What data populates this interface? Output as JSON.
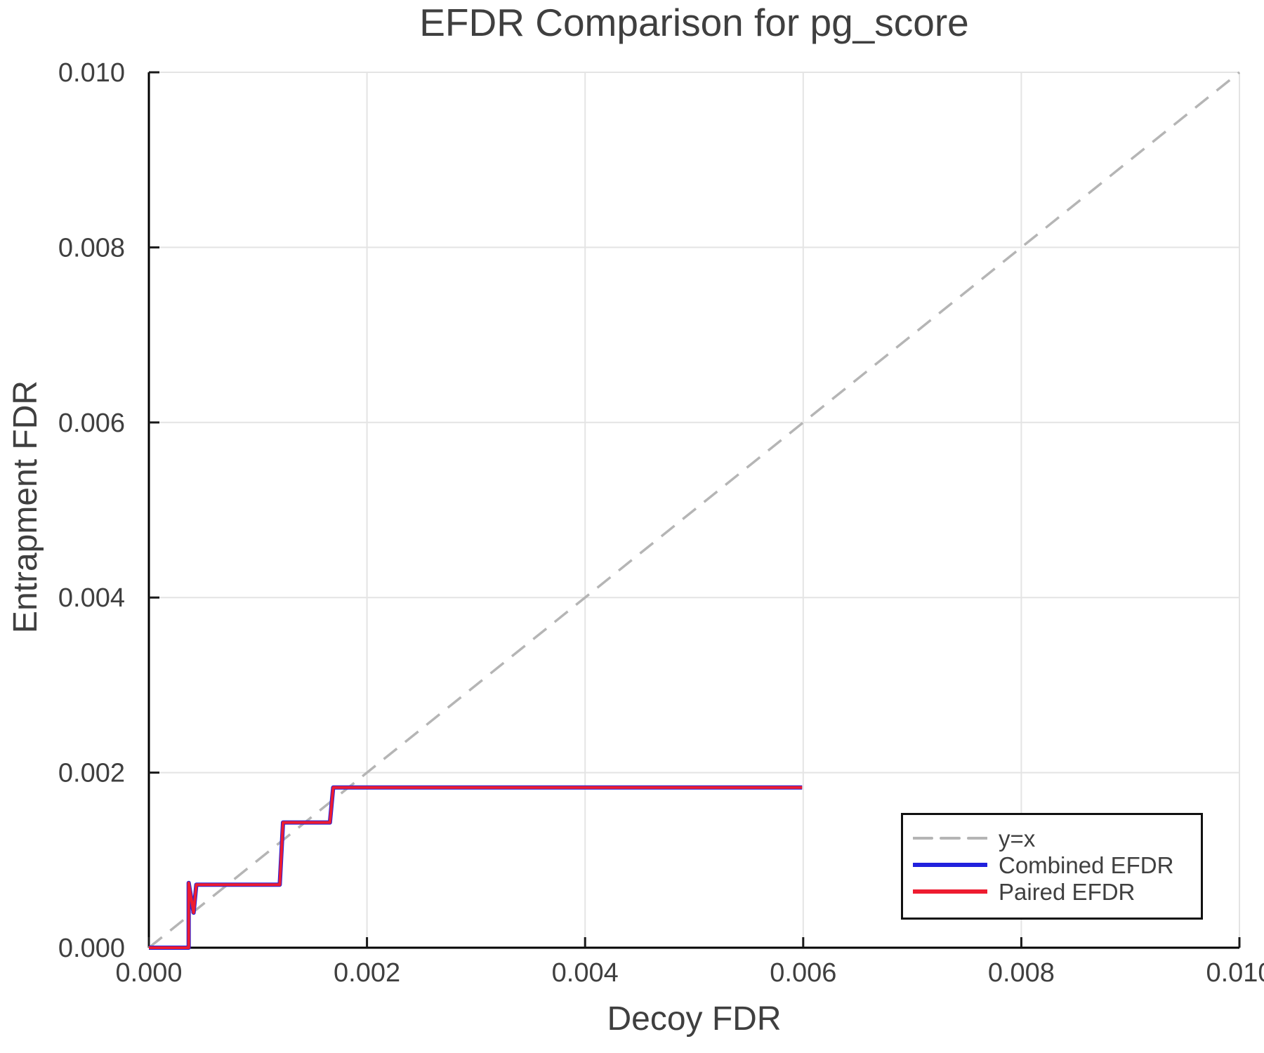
{
  "title": "EFDR Comparison for pg_score",
  "xlabel": "Decoy FDR",
  "ylabel": "Entrapment FDR",
  "colors": {
    "text": "#3f3f3f",
    "grid": "#e4e4e4",
    "spine": "#000000",
    "tick": "#1a1a1a",
    "reference_gray": "#b5b5b5",
    "combined_blue": "#2121dd",
    "paired_red": "#ee1c30"
  },
  "axes": {
    "x": {
      "min": 0,
      "max": 0.01,
      "ticks": [
        0,
        0.002,
        0.004,
        0.006,
        0.008,
        0.01
      ],
      "tick_labels": [
        "0.000",
        "0.002",
        "0.004",
        "0.006",
        "0.008",
        "0.010"
      ]
    },
    "y": {
      "min": 0,
      "max": 0.01,
      "ticks": [
        0,
        0.002,
        0.004,
        0.006,
        0.008,
        0.01
      ],
      "tick_labels": [
        "0.000",
        "0.002",
        "0.004",
        "0.006",
        "0.008",
        "0.010"
      ]
    }
  },
  "legend": {
    "items": [
      {
        "label": "y=x",
        "color": "#b5b5b5",
        "style": "dashed"
      },
      {
        "label": "Combined EFDR",
        "color": "#2121dd",
        "style": "solid"
      },
      {
        "label": "Paired EFDR",
        "color": "#ee1c30",
        "style": "solid"
      }
    ]
  },
  "chart_data": {
    "type": "line",
    "title": "EFDR Comparison for pg_score",
    "xlabel": "Decoy FDR",
    "ylabel": "Entrapment FDR",
    "xlim": [
      0,
      0.01
    ],
    "ylim": [
      0,
      0.01
    ],
    "grid": true,
    "legend_position": "bottom-right",
    "series": [
      {
        "name": "y=x",
        "color": "#b5b5b5",
        "dashed": true,
        "width": 3.5,
        "points": [
          [
            0,
            0
          ],
          [
            0.01,
            0.01
          ]
        ]
      },
      {
        "name": "Combined EFDR",
        "color": "#2121dd",
        "dashed": false,
        "width": 6,
        "points": [
          [
            0,
            0
          ],
          [
            0.000365,
            0
          ],
          [
            0.000365,
            0.00074
          ],
          [
            0.00041,
            0.0004
          ],
          [
            0.000435,
            0.00072
          ],
          [
            0.0012,
            0.00072
          ],
          [
            0.00123,
            0.00143
          ],
          [
            0.00166,
            0.00143
          ],
          [
            0.00169,
            0.00183
          ],
          [
            0.00599,
            0.00183
          ]
        ]
      },
      {
        "name": "Paired EFDR",
        "color": "#ee1c30",
        "dashed": false,
        "width": 4,
        "points": [
          [
            0,
            0
          ],
          [
            0.000365,
            0
          ],
          [
            0.000365,
            0.00074
          ],
          [
            0.00041,
            0.0004
          ],
          [
            0.000435,
            0.00072
          ],
          [
            0.0012,
            0.00072
          ],
          [
            0.00123,
            0.00143
          ],
          [
            0.00166,
            0.00143
          ],
          [
            0.00169,
            0.00183
          ],
          [
            0.00599,
            0.00183
          ]
        ]
      }
    ]
  }
}
